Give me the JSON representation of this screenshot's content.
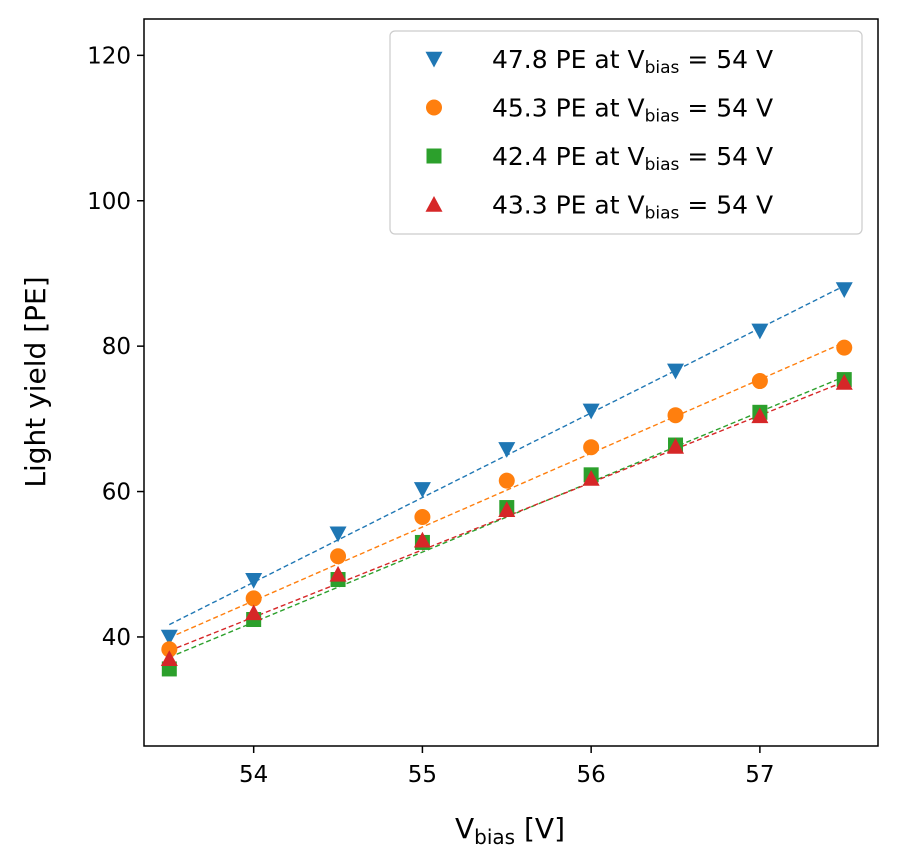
{
  "chart_data": {
    "type": "scatter",
    "xlabel": "V_bias [V]",
    "xlabel_main": "V",
    "xlabel_sub": "bias",
    "xlabel_suffix": " [V]",
    "ylabel": "Light yield [PE]",
    "xlim": [
      53.35,
      57.7
    ],
    "ylim": [
      25,
      125
    ],
    "xticks": [
      54,
      55,
      56,
      57
    ],
    "yticks": [
      40,
      60,
      80,
      100,
      120
    ],
    "xtick_labels": [
      "54",
      "55",
      "56",
      "57"
    ],
    "ytick_labels": [
      "40",
      "60",
      "80",
      "100",
      "120"
    ],
    "grid": false,
    "legend_position": "top-right",
    "x": [
      53.5,
      54.0,
      54.5,
      55.0,
      55.5,
      56.0,
      56.5,
      57.0,
      57.5
    ],
    "series": [
      {
        "legend": {
          "prefix": "47.8 PE at V",
          "sub": "bias",
          "suffix": " = 54 V"
        },
        "marker": "triangle-down",
        "color": "#1f77b4",
        "values": [
          40.0,
          47.8,
          54.2,
          60.3,
          65.8,
          71.1,
          76.6,
          82.1,
          87.8
        ],
        "fit": [
          41.7,
          88.3
        ]
      },
      {
        "legend": {
          "prefix": "45.3 PE at V",
          "sub": "bias",
          "suffix": " = 54 V"
        },
        "marker": "circle",
        "color": "#ff7f0e",
        "values": [
          38.3,
          45.3,
          51.1,
          56.5,
          61.5,
          66.1,
          70.5,
          75.2,
          79.8
        ],
        "fit": [
          39.9,
          80.5
        ]
      },
      {
        "legend": {
          "prefix": "42.4 PE at V",
          "sub": "bias",
          "suffix": " = 54 V"
        },
        "marker": "square",
        "color": "#2ca02c",
        "values": [
          35.6,
          42.4,
          47.9,
          53.0,
          57.8,
          62.3,
          66.4,
          70.9,
          75.4
        ],
        "fit": [
          37.2,
          75.8
        ]
      },
      {
        "legend": {
          "prefix": "43.3 PE at V",
          "sub": "bias",
          "suffix": " = 54 V"
        },
        "marker": "triangle-up",
        "color": "#d62728",
        "values": [
          37.0,
          43.3,
          48.6,
          53.3,
          57.5,
          61.8,
          66.2,
          70.4,
          75.0
        ],
        "fit": [
          38.1,
          75.1
        ]
      }
    ]
  }
}
